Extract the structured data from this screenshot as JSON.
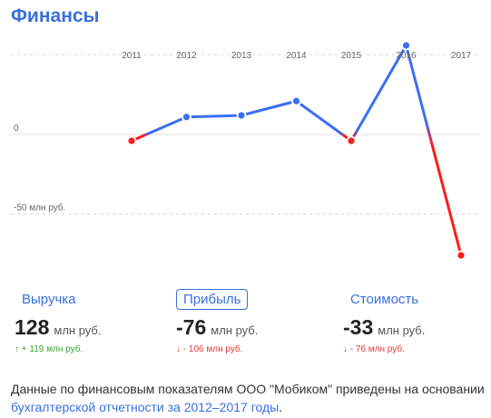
{
  "title": "Финансы",
  "chart_data": {
    "type": "line",
    "x": [
      "2011",
      "2012",
      "2013",
      "2014",
      "2015",
      "2016",
      "2017"
    ],
    "series": [
      {
        "values": [
          -4,
          11,
          12,
          21,
          -4,
          56,
          -76
        ]
      }
    ],
    "y_tick_labels": [
      {
        "value": 0,
        "label": "0"
      },
      {
        "value": -50,
        "label": "-50 млн руб."
      }
    ],
    "ylim": [
      -80,
      90
    ],
    "grid": true,
    "colors": {
      "positive": "#3a6ff0",
      "negative": "#ff1a1a"
    }
  },
  "metrics": [
    {
      "label": "Выручка",
      "value": "128",
      "unit": "млн руб.",
      "arrow": "↑",
      "change": "+ 119 млн руб.",
      "direction": "up",
      "active": false
    },
    {
      "label": "Прибыль",
      "value": "-76",
      "unit": "млн руб.",
      "arrow": "↓",
      "change": "- 106 млн руб.",
      "direction": "down",
      "active": true
    },
    {
      "label": "Стоимость",
      "value": "-33",
      "unit": "млн руб.",
      "arrow": "↓",
      "change": "- 76 млн руб.",
      "direction": "down",
      "active": false
    }
  ],
  "note": {
    "text": "Данные по финансовым показателям ООО \"Мобиком\" приведены на основании ",
    "link": "бухгалтерской отчетности за 2012–2017 годы",
    "end": "."
  }
}
